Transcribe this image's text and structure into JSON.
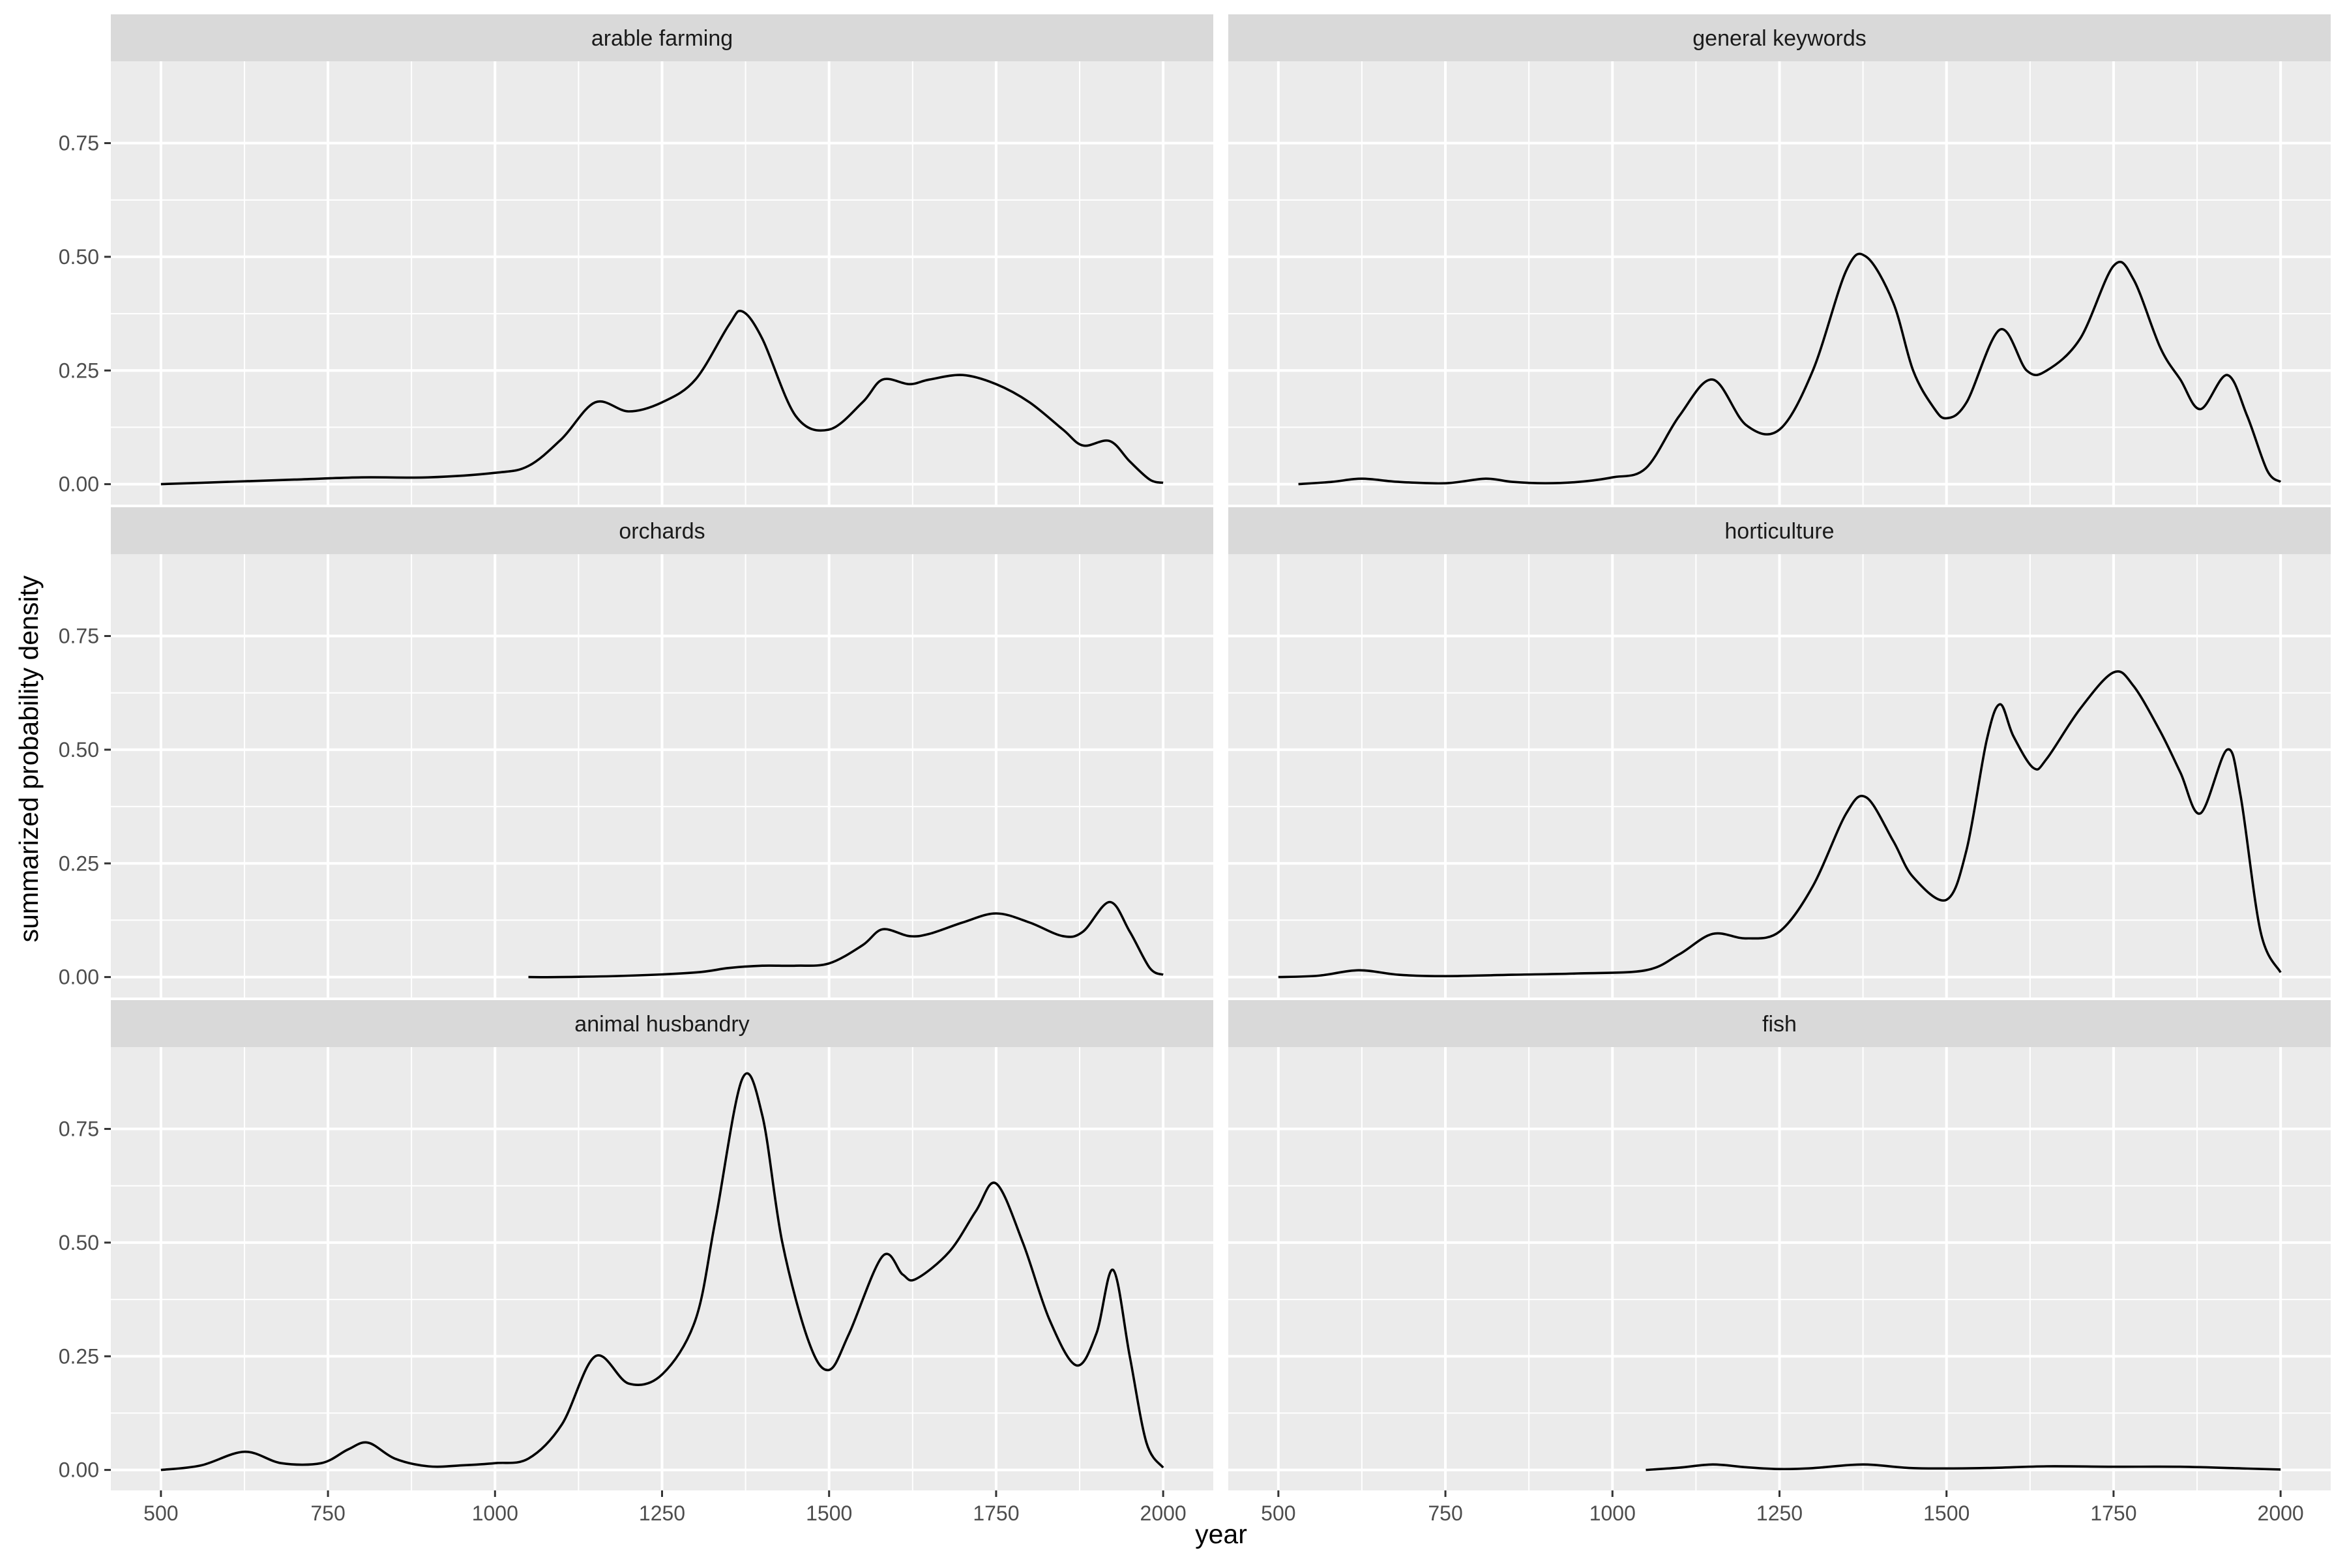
{
  "chart_data": {
    "type": "line",
    "xlabel": "year",
    "ylabel": "summarized probability density",
    "xlim": [
      425,
      2075
    ],
    "ylim": [
      -0.045,
      0.93
    ],
    "x_ticks": [
      500,
      750,
      1000,
      1250,
      1500,
      1750,
      2000
    ],
    "x_tick_labels": [
      "500",
      "750",
      "1000",
      "1250",
      "1500",
      "1750",
      "2000"
    ],
    "y_ticks": [
      0,
      0.25,
      0.5,
      0.75
    ],
    "y_tick_labels": [
      "0.00",
      "0.25",
      "0.50",
      "0.75"
    ],
    "grid": true,
    "colors": {
      "panel_background": "#EBEBEB",
      "strip_background": "#D9D9D9",
      "grid_line": "#FFFFFF",
      "line": "#000000"
    },
    "facets": [
      {
        "label": "arable farming",
        "x": [
          500,
          600,
          700,
          800,
          900,
          1000,
          1050,
          1100,
          1150,
          1200,
          1250,
          1300,
          1350,
          1370,
          1400,
          1450,
          1500,
          1550,
          1580,
          1620,
          1650,
          1700,
          1750,
          1800,
          1850,
          1880,
          1920,
          1950,
          1980,
          2000
        ],
        "y": [
          0.0,
          0.005,
          0.01,
          0.015,
          0.015,
          0.025,
          0.04,
          0.1,
          0.18,
          0.16,
          0.18,
          0.23,
          0.35,
          0.38,
          0.32,
          0.15,
          0.12,
          0.18,
          0.23,
          0.22,
          0.23,
          0.24,
          0.22,
          0.18,
          0.12,
          0.085,
          0.095,
          0.05,
          0.01,
          0.003
        ]
      },
      {
        "label": "general keywords",
        "x": [
          530,
          580,
          625,
          680,
          750,
          810,
          850,
          900,
          950,
          1000,
          1050,
          1100,
          1150,
          1200,
          1250,
          1300,
          1350,
          1380,
          1420,
          1450,
          1480,
          1500,
          1530,
          1580,
          1620,
          1650,
          1700,
          1750,
          1780,
          1820,
          1850,
          1880,
          1920,
          1950,
          1980,
          2000
        ],
        "y": [
          0.0,
          0.005,
          0.012,
          0.005,
          0.002,
          0.012,
          0.005,
          0.002,
          0.005,
          0.015,
          0.035,
          0.15,
          0.23,
          0.13,
          0.12,
          0.25,
          0.47,
          0.5,
          0.4,
          0.25,
          0.17,
          0.145,
          0.18,
          0.34,
          0.25,
          0.25,
          0.32,
          0.48,
          0.45,
          0.3,
          0.23,
          0.165,
          0.24,
          0.15,
          0.03,
          0.005
        ]
      },
      {
        "label": "orchards",
        "x": [
          1050,
          1100,
          1200,
          1300,
          1350,
          1400,
          1450,
          1500,
          1550,
          1580,
          1620,
          1650,
          1700,
          1750,
          1800,
          1850,
          1880,
          1920,
          1950,
          1980,
          2000
        ],
        "y": [
          0.0,
          0.0,
          0.003,
          0.01,
          0.02,
          0.025,
          0.025,
          0.03,
          0.07,
          0.105,
          0.09,
          0.095,
          0.12,
          0.14,
          0.12,
          0.09,
          0.1,
          0.165,
          0.1,
          0.02,
          0.005
        ]
      },
      {
        "label": "horticulture",
        "x": [
          500,
          560,
          620,
          680,
          750,
          850,
          950,
          1050,
          1100,
          1150,
          1200,
          1250,
          1300,
          1350,
          1380,
          1420,
          1450,
          1500,
          1530,
          1560,
          1580,
          1600,
          1630,
          1650,
          1700,
          1750,
          1780,
          1820,
          1850,
          1880,
          1920,
          1940,
          1970,
          2000
        ],
        "y": [
          0.0,
          0.003,
          0.015,
          0.005,
          0.002,
          0.005,
          0.008,
          0.015,
          0.05,
          0.095,
          0.085,
          0.1,
          0.2,
          0.36,
          0.395,
          0.3,
          0.22,
          0.17,
          0.28,
          0.52,
          0.6,
          0.53,
          0.46,
          0.48,
          0.59,
          0.67,
          0.64,
          0.54,
          0.45,
          0.36,
          0.5,
          0.4,
          0.1,
          0.01
        ]
      },
      {
        "label": "animal husbandry",
        "x": [
          500,
          560,
          625,
          680,
          740,
          780,
          810,
          850,
          900,
          950,
          1000,
          1050,
          1100,
          1150,
          1200,
          1250,
          1300,
          1330,
          1370,
          1400,
          1430,
          1470,
          1500,
          1530,
          1580,
          1610,
          1630,
          1680,
          1720,
          1750,
          1790,
          1830,
          1870,
          1900,
          1925,
          1950,
          1975,
          2000
        ],
        "y": [
          0.0,
          0.01,
          0.04,
          0.015,
          0.015,
          0.045,
          0.06,
          0.025,
          0.008,
          0.01,
          0.015,
          0.025,
          0.1,
          0.25,
          0.19,
          0.21,
          0.33,
          0.55,
          0.86,
          0.78,
          0.5,
          0.28,
          0.22,
          0.3,
          0.47,
          0.43,
          0.42,
          0.48,
          0.57,
          0.63,
          0.5,
          0.33,
          0.23,
          0.3,
          0.44,
          0.25,
          0.06,
          0.005
        ]
      },
      {
        "label": "fish",
        "x": [
          1050,
          1100,
          1150,
          1200,
          1250,
          1300,
          1375,
          1450,
          1550,
          1650,
          1750,
          1850,
          1950,
          2000
        ],
        "y": [
          0.0,
          0.005,
          0.012,
          0.006,
          0.002,
          0.004,
          0.012,
          0.004,
          0.004,
          0.008,
          0.007,
          0.007,
          0.003,
          0.001
        ]
      }
    ]
  }
}
